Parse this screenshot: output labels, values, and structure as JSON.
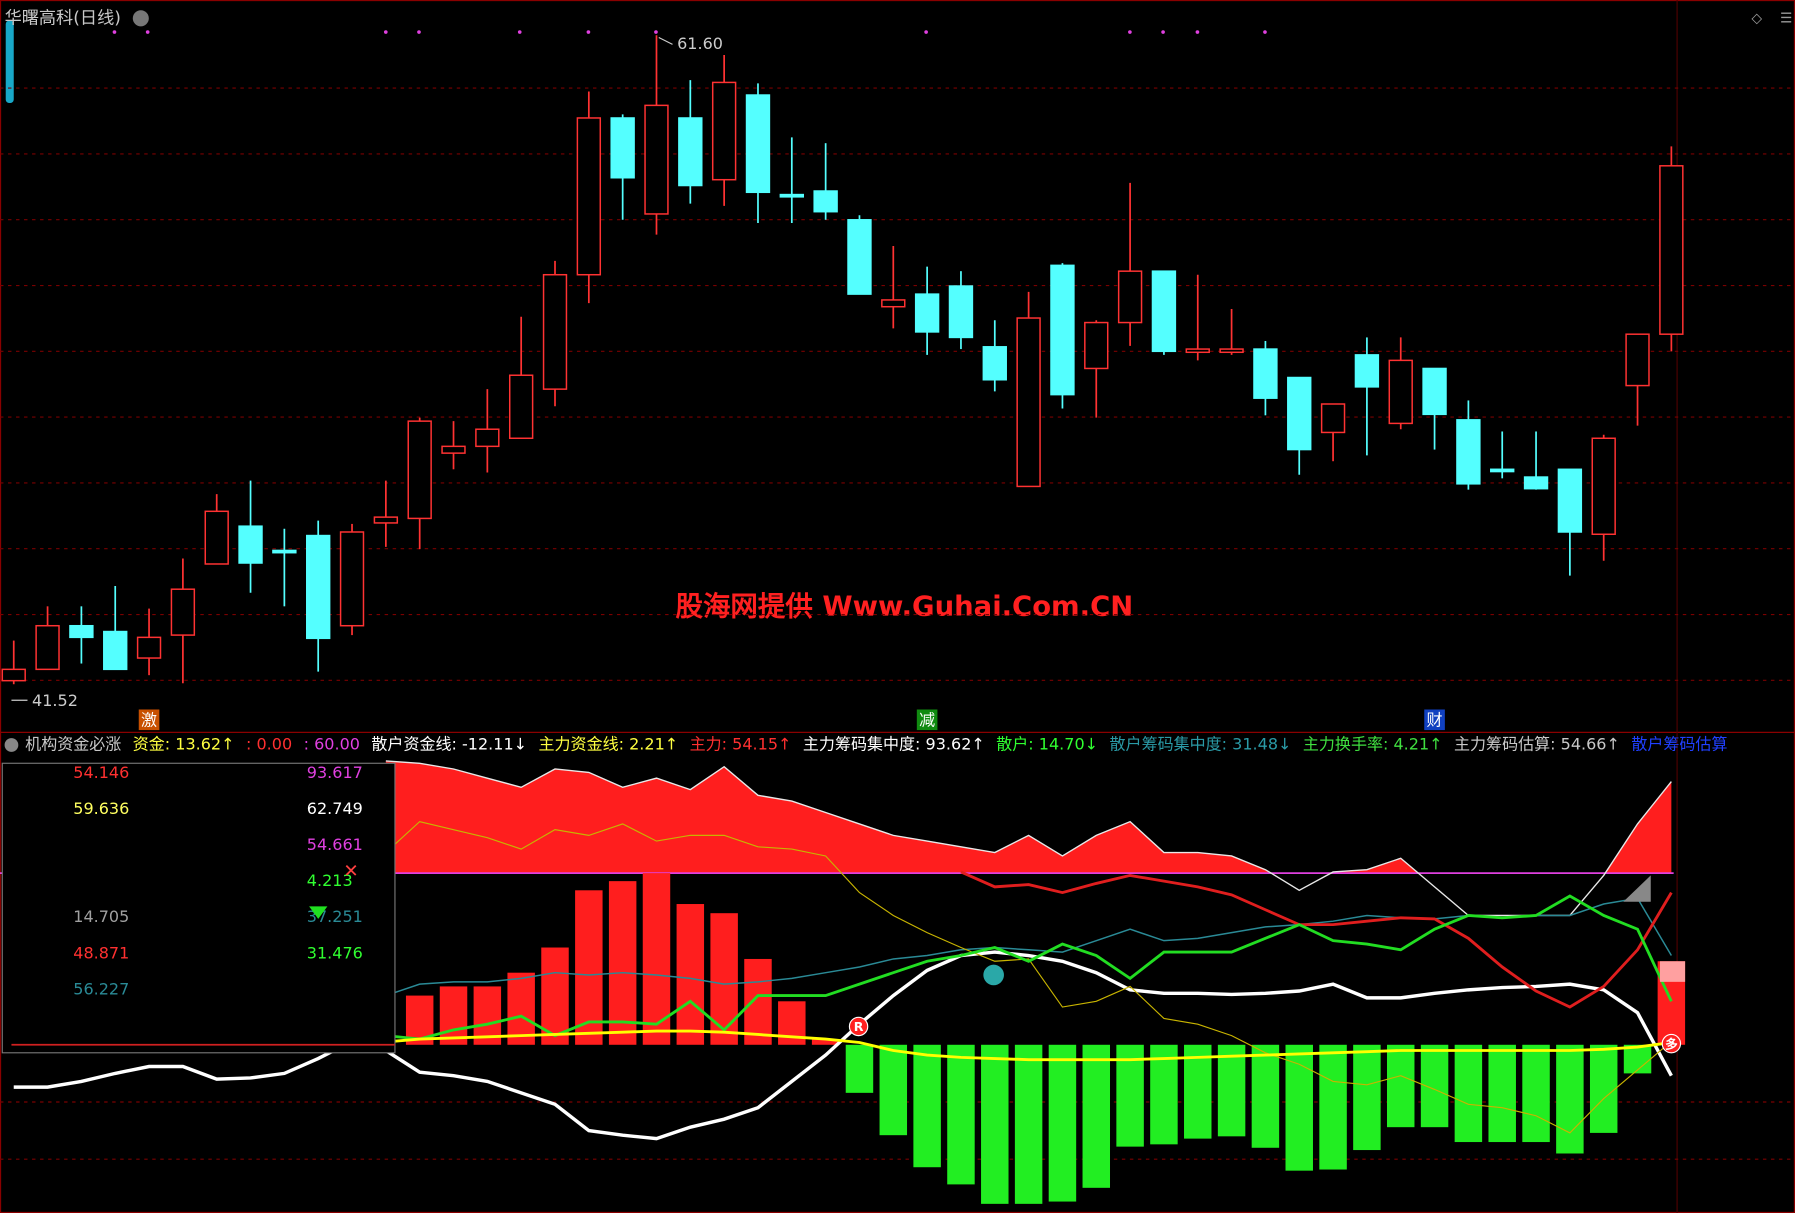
{
  "window": {
    "title": "华曙高科(日线)",
    "watermark": "股海网提供 Www.Guhai.Com.CN"
  },
  "chart_data": [
    {
      "type": "candlestick",
      "ylim": [
        40.03,
        62.69
      ],
      "grid": true,
      "up_color": "#ff3232",
      "down_color": "#54ffff",
      "open": [
        41.63,
        41.98,
        43.33,
        43.15,
        42.33,
        43.04,
        45.24,
        46.41,
        45.66,
        46.12,
        43.33,
        46.51,
        46.65,
        48.67,
        48.88,
        49.13,
        50.65,
        54.19,
        59.04,
        56.07,
        59.04,
        57.13,
        59.75,
        56.67,
        56.78,
        55.89,
        53.2,
        53.59,
        53.84,
        51.96,
        47.64,
        54.48,
        51.29,
        52.71,
        54.3,
        51.79,
        51.79,
        51.89,
        51.01,
        49.31,
        51.71,
        49.59,
        51.29,
        49.7,
        48.17,
        47.93,
        48.17,
        46.16,
        50.76,
        52.35
      ],
      "high": [
        42.87,
        43.93,
        43.93,
        44.56,
        43.86,
        45.41,
        47.4,
        47.82,
        46.33,
        46.58,
        46.48,
        47.82,
        49.77,
        49.66,
        50.65,
        52.89,
        54.62,
        59.86,
        59.15,
        61.6,
        60.21,
        60.99,
        60.11,
        58.44,
        58.26,
        56.03,
        55.08,
        54.44,
        54.3,
        52.78,
        53.66,
        54.55,
        52.78,
        57.03,
        54.3,
        54.19,
        53.13,
        52.14,
        51.01,
        50.19,
        52.25,
        52.25,
        51.29,
        50.3,
        49.34,
        49.34,
        48.17,
        49.24,
        52.35,
        58.16
      ],
      "low": [
        41.52,
        41.98,
        42.16,
        41.98,
        41.8,
        41.55,
        45.24,
        44.35,
        43.93,
        41.91,
        43.04,
        45.77,
        45.7,
        48.17,
        48.07,
        49.13,
        50.12,
        53.31,
        55.89,
        55.43,
        56.39,
        56.32,
        55.79,
        55.79,
        55.89,
        53.59,
        52.53,
        51.71,
        51.89,
        50.58,
        47.64,
        50.05,
        49.77,
        51.99,
        51.71,
        51.54,
        51.71,
        49.84,
        48.0,
        48.42,
        48.6,
        49.41,
        48.78,
        47.54,
        47.89,
        47.54,
        44.88,
        45.34,
        49.52,
        51.82
      ],
      "close": [
        41.98,
        43.33,
        42.97,
        41.98,
        42.97,
        44.46,
        46.87,
        45.27,
        45.59,
        42.94,
        46.23,
        46.69,
        49.66,
        48.88,
        49.41,
        51.08,
        54.19,
        59.04,
        57.19,
        59.43,
        56.95,
        60.14,
        56.74,
        56.6,
        56.14,
        53.59,
        53.41,
        52.42,
        52.25,
        50.94,
        52.85,
        50.48,
        52.71,
        54.3,
        51.82,
        51.89,
        51.89,
        50.37,
        48.78,
        50.19,
        50.72,
        51.54,
        49.87,
        47.72,
        48.1,
        47.57,
        46.23,
        49.13,
        52.35,
        57.56
      ],
      "max_label": "61.60",
      "min_label": "41.52",
      "signals": [
        null,
        null,
        null,
        null,
        {
          "text": "激",
          "color": "#c85000"
        },
        null,
        null,
        null,
        null,
        null,
        null,
        null,
        null,
        null,
        null,
        null,
        null,
        null,
        null,
        null,
        null,
        null,
        null,
        null,
        null,
        null,
        null,
        {
          "text": "减",
          "color": "#108a10"
        },
        null,
        null,
        null,
        null,
        null,
        null,
        null,
        null,
        null,
        null,
        null,
        null,
        null,
        null,
        {
          "text": "财",
          "color": "#1040c0"
        },
        null,
        null,
        null,
        null,
        null,
        null,
        null
      ]
    },
    {
      "type": "indicator",
      "ylim": [
        -58.8,
        101.2
      ],
      "grid": true,
      "header": [
        {
          "text": "机构资金必涨",
          "color": "#c8c8c8"
        },
        {
          "text": "资金: 13.62↑",
          "color": "#ffff40"
        },
        {
          "text": ": 0.00",
          "color": "#ff3030"
        },
        {
          "text": ": 60.00",
          "color": "#e040e0"
        },
        {
          "text": "散户资金线: -12.11↓",
          "color": "#ffffff"
        },
        {
          "text": "主力资金线: 2.21↑",
          "color": "#ffff40"
        },
        {
          "text": "主力: 54.15↑",
          "color": "#ff3030"
        },
        {
          "text": "主力筹码集中度: 93.62↑",
          "color": "#ffffff"
        },
        {
          "text": "散户: 14.70↓",
          "color": "#30ff30"
        },
        {
          "text": "散户筹码集中度: 31.48↓",
          "color": "#2a9aa6"
        },
        {
          "text": "主力换手率: 4.21↑",
          "color": "#40e040"
        },
        {
          "text": "主力筹码估算: 54.66↑",
          "color": "#c8c8c8"
        },
        {
          "text": "散户筹码估算",
          "color": "#2040ff"
        }
      ],
      "levels": [
        {
          "value": 60,
          "color": "#e040e0"
        }
      ],
      "bars": {
        "up_color": "#ff1e1e",
        "down_color": "#22ee22",
        "values": [
          null,
          null,
          null,
          null,
          null,
          null,
          null,
          null,
          null,
          null,
          null,
          null,
          17.2,
          20.4,
          20.4,
          25.2,
          34,
          54,
          57.2,
          60,
          49.2,
          46,
          30,
          15.2,
          2,
          -16.8,
          -31.6,
          -42.8,
          -48.8,
          -55.6,
          -55.6,
          -54.8,
          -50,
          -35.6,
          -34.8,
          -32.8,
          -32,
          -36,
          -44,
          -43.6,
          -36.8,
          -28.8,
          -28.8,
          -34,
          -34,
          -34,
          -38,
          -30.8,
          -10,
          29.2
        ]
      },
      "area_color": "#ff1e1e",
      "lines": [
        {
          "color": "#e8e8e8",
          "width": 1.2,
          "values": [
            null,
            null,
            null,
            null,
            null,
            null,
            null,
            null,
            null,
            null,
            null,
            99.2,
            98.4,
            96.4,
            93.2,
            90,
            96.4,
            95.2,
            90,
            93.2,
            89.2,
            97.2,
            87.2,
            85.2,
            81.2,
            77.2,
            73.2,
            71.2,
            69.2,
            67.2,
            73.2,
            66,
            73.2,
            78,
            67.2,
            67.2,
            66,
            61.2,
            54,
            60.4,
            61.2,
            65.2,
            55.2,
            45.2,
            45.2,
            45.2,
            45.2,
            59.2,
            77.2,
            92
          ]
        },
        {
          "color": "#ffffff",
          "width": 3,
          "values": [
            -14.8,
            -14.8,
            -12.8,
            -10,
            -7.6,
            -7.6,
            -12,
            -11.6,
            -10,
            -4.8,
            1.2,
            -2,
            -9.6,
            -10.8,
            -12.8,
            -16.8,
            -20.8,
            -30,
            -31.6,
            -32.8,
            -28.8,
            -26,
            -22,
            -12.8,
            -3.6,
            7.2,
            17.2,
            26,
            31.2,
            32.4,
            31.2,
            29.2,
            25.2,
            19.2,
            18,
            18,
            17.6,
            18,
            18.8,
            21.2,
            16.4,
            16.4,
            18,
            19.2,
            20,
            20.4,
            21.2,
            19.2,
            11.2,
            -10.8
          ]
        },
        {
          "color": "#2a8a96",
          "width": 1.3,
          "values": [
            null,
            null,
            null,
            null,
            null,
            null,
            null,
            null,
            null,
            null,
            null,
            17.2,
            21.2,
            22,
            22,
            23.2,
            25.2,
            24.4,
            25.2,
            24.4,
            23.2,
            21.2,
            22,
            23.2,
            25.2,
            27.2,
            30,
            31.2,
            33.2,
            34,
            33.2,
            32.4,
            36.4,
            40.4,
            36.4,
            37.2,
            39.2,
            41.2,
            42,
            43.2,
            45.2,
            44.4,
            44,
            45.2,
            44.4,
            45.2,
            45.2,
            49.2,
            51.2,
            31.2
          ]
        },
        {
          "color": "#c8b400",
          "width": 1,
          "values": [
            null,
            null,
            null,
            null,
            null,
            null,
            null,
            null,
            null,
            null,
            null,
            67.2,
            78,
            75.2,
            72.4,
            68.4,
            75.2,
            73.2,
            77.2,
            71.2,
            73.2,
            73.2,
            69.2,
            68.4,
            66,
            53.2,
            45.2,
            39.2,
            34,
            29.2,
            30,
            13.2,
            15.2,
            20.4,
            9.2,
            7.2,
            3.2,
            -2.8,
            -6.8,
            -12.8,
            -14,
            -10.8,
            -15.6,
            -20.8,
            -22,
            -24.8,
            -30.8,
            -18.8,
            -8.8,
            1.2
          ]
        },
        {
          "color": "#e01e1e",
          "width": 2.5,
          "values": [
            null,
            null,
            null,
            null,
            null,
            null,
            null,
            null,
            null,
            null,
            null,
            null,
            null,
            null,
            null,
            null,
            null,
            null,
            null,
            null,
            null,
            null,
            null,
            null,
            null,
            null,
            null,
            null,
            60.4,
            55.2,
            56,
            53.2,
            56.4,
            59.2,
            57.2,
            55.2,
            52.4,
            47.2,
            42,
            42,
            43.2,
            44.4,
            44,
            37.2,
            27.2,
            18.8,
            13.2,
            20.4,
            33.2,
            53.2
          ]
        },
        {
          "color": "#22dd22",
          "width": 2.5,
          "values": [
            null,
            null,
            null,
            null,
            null,
            null,
            null,
            null,
            null,
            null,
            null,
            3.2,
            2,
            5.2,
            7.2,
            10,
            3.2,
            8,
            8,
            7.2,
            15.2,
            5.2,
            17.2,
            17.2,
            17.2,
            21.2,
            25.2,
            29.2,
            31.2,
            34,
            29.2,
            35.2,
            31.2,
            23.2,
            32.4,
            32.4,
            32.4,
            37.2,
            42,
            36.4,
            35.2,
            33.2,
            40.4,
            45.2,
            44.4,
            45.2,
            52,
            45.2,
            40.4,
            15.2
          ]
        },
        {
          "color": "#ffff00",
          "width": 2.5,
          "values": [
            null,
            null,
            null,
            null,
            null,
            null,
            null,
            null,
            null,
            null,
            null,
            1,
            2,
            2.4,
            2.8,
            3.2,
            3.6,
            4,
            4.4,
            4.8,
            4.8,
            4.4,
            3.6,
            2.8,
            2,
            0.8,
            -2,
            -3.6,
            -4.4,
            -4.8,
            -5.2,
            -5.2,
            -5.2,
            -5.2,
            -4.8,
            -4.4,
            -4,
            -3.6,
            -3.2,
            -2.8,
            -2.4,
            -2,
            -2,
            -2,
            -2,
            -2,
            -2,
            -1.6,
            -0.8,
            0.8
          ]
        }
      ],
      "badges": [
        "R",
        "多"
      ],
      "panel": {
        "left": [
          "54.146",
          "59.636",
          null,
          null,
          "14.705",
          "48.871",
          "56.227"
        ],
        "left_colors": [
          "#ff3030",
          "#ffff60",
          null,
          null,
          "#a0a0a0",
          "#ff3030",
          "#2a8a96"
        ],
        "right": [
          "93.617",
          "62.749",
          "54.661",
          "4.213",
          "37.251",
          "31.476",
          null
        ],
        "right_colors": [
          "#e040e0",
          "#ffffff",
          "#e040e0",
          "#30ff30",
          "#2a8a96",
          "#30ff30",
          null
        ]
      }
    }
  ]
}
